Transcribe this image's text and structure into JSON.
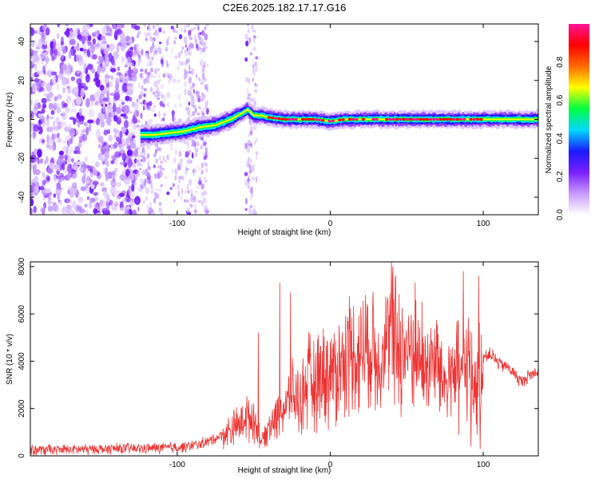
{
  "title": "C2E6.2025.182.17.17.G16",
  "chart_data": [
    {
      "type": "heatmap",
      "xlabel": "Height of straight line (km)",
      "ylabel": "Frequency (Hz)",
      "xlim": [
        -196,
        136
      ],
      "ylim": [
        -49,
        49
      ],
      "xticks": [
        -100,
        0,
        100
      ],
      "yticks": [
        -40,
        -20,
        0,
        20,
        40
      ],
      "colorbar": {
        "label": "Normalized spectral amplitude",
        "range": [
          0,
          1
        ],
        "ticks": [
          "0.0",
          "0.2",
          "0.4",
          "0.6",
          "0.8"
        ],
        "colors": [
          "#ffffff",
          "#c89bff",
          "#7a1fff",
          "#1a1aff",
          "#00d8ff",
          "#00ff40",
          "#ffff00",
          "#ff6a00",
          "#ff0000",
          "#ff1493"
        ]
      },
      "signal_track": {
        "x": [
          -124,
          -115,
          -105,
          -95,
          -85,
          -75,
          -65,
          -58,
          -54,
          -50,
          -45,
          -40,
          -30,
          -20,
          -10,
          0,
          10,
          20,
          40,
          60,
          80,
          95,
          100,
          120,
          136
        ],
        "y": [
          -8,
          -8,
          -7,
          -6,
          -4,
          -3,
          0,
          3,
          5,
          2,
          2,
          1,
          0,
          0,
          0,
          -1,
          0,
          0,
          0,
          0,
          0,
          0,
          0,
          0,
          0
        ]
      }
    },
    {
      "type": "line",
      "xlabel": "Height of straight line (km)",
      "ylabel": "SNR (10 * v/v)",
      "xlim": [
        -196,
        136
      ],
      "ylim": [
        0,
        8200
      ],
      "xticks": [
        -100,
        0,
        100
      ],
      "yticks": [
        0,
        2000,
        4000,
        6000,
        8000
      ],
      "series": [
        {
          "color": "#ee3333",
          "x": [
            -196,
            -180,
            -160,
            -140,
            -120,
            -100,
            -90,
            -80,
            -70,
            -60,
            -55,
            -50,
            -45,
            -40,
            -35,
            -30,
            -25,
            -20,
            -15,
            -10,
            -5,
            0,
            5,
            10,
            15,
            20,
            25,
            30,
            35,
            40,
            45,
            50,
            55,
            60,
            65,
            70,
            75,
            80,
            85,
            90,
            95,
            100,
            105,
            110,
            115,
            120,
            125,
            130,
            136
          ],
          "y": [
            250,
            250,
            280,
            300,
            320,
            350,
            420,
            600,
            900,
            1300,
            1700,
            1600,
            600,
            1300,
            1700,
            2000,
            2500,
            2400,
            3000,
            3300,
            3600,
            3400,
            3800,
            4200,
            4300,
            4500,
            4700,
            4200,
            4600,
            5000,
            4800,
            4400,
            4700,
            3600,
            3800,
            4100,
            3000,
            3700,
            3500,
            3900,
            3000,
            4200,
            4300,
            3900,
            3800,
            3500,
            3100,
            3400,
            3600
          ],
          "spikes": [
            {
              "x": -47,
              "y": 5200
            },
            {
              "x": -33,
              "y": 7300
            },
            {
              "x": -26,
              "y": 6900
            },
            {
              "x": 40,
              "y": 8200
            },
            {
              "x": 60,
              "y": 6500
            },
            {
              "x": 87,
              "y": 7800
            },
            {
              "x": 97,
              "y": 7600
            },
            {
              "x": 92,
              "y": 400
            },
            {
              "x": 98,
              "y": 300
            },
            {
              "x": 84,
              "y": 900
            }
          ]
        }
      ]
    }
  ]
}
